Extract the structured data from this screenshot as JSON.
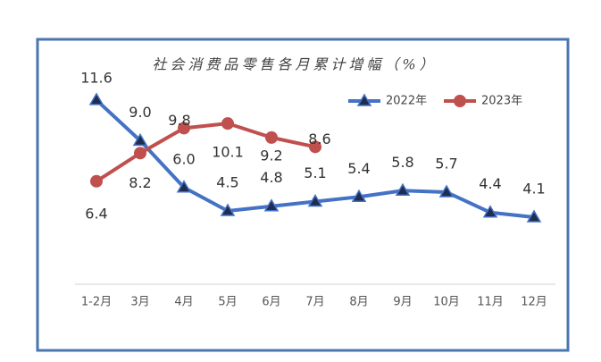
{
  "chart_data": {
    "type": "line",
    "title": "社会消费品零售各月累计增幅（%）",
    "categories": [
      "1-2月",
      "3月",
      "4月",
      "5月",
      "6月",
      "7月",
      "8月",
      "9月",
      "10月",
      "11月",
      "12月"
    ],
    "ylim": [
      0,
      14
    ],
    "legend": "top-right",
    "series": [
      {
        "name": "2022年",
        "color": "#4472c4",
        "marker": "triangle",
        "values": [
          11.6,
          9.0,
          6.0,
          4.5,
          4.8,
          5.1,
          5.4,
          5.8,
          5.7,
          4.4,
          4.1
        ],
        "value_labels": [
          "11.6",
          "9.0",
          "6.0",
          "4.5",
          "4.8",
          "5.1",
          "5.4",
          "5.8",
          "5.7",
          "4.4",
          "4.1"
        ]
      },
      {
        "name": "2023年",
        "color": "#c0504d",
        "marker": "circle",
        "values": [
          6.4,
          8.2,
          9.8,
          10.1,
          9.2,
          8.6,
          null,
          null,
          null,
          null,
          null
        ],
        "value_labels": [
          "6.4",
          "8.2",
          "9.8",
          "10.1",
          "9.2",
          "8.6",
          null,
          null,
          null,
          null,
          null
        ]
      }
    ]
  }
}
